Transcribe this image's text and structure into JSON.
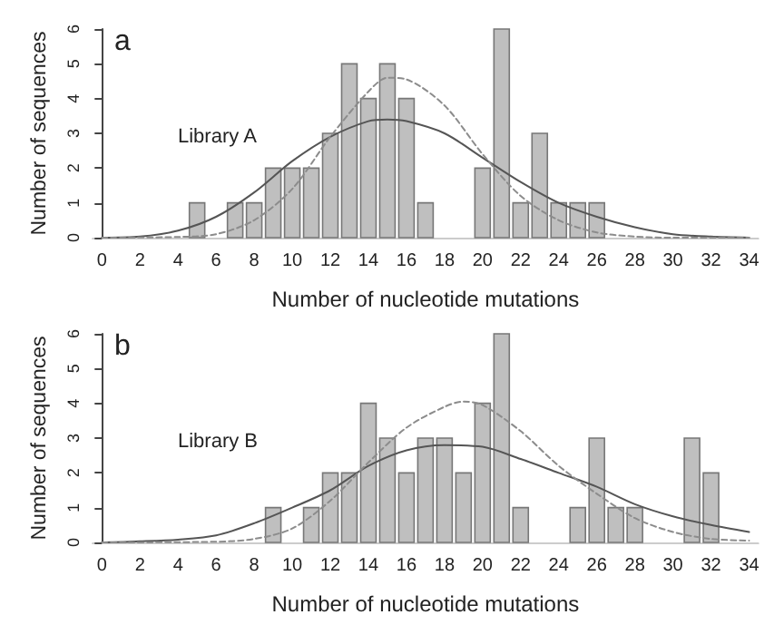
{
  "chart_data": [
    {
      "type": "histogram",
      "title": "a",
      "annotations": [
        "Library A"
      ],
      "xlabel": "Number of nucleotide mutations",
      "ylabel": "Number of sequences",
      "bins": [
        -0.5,
        0.5,
        1.5,
        2.5,
        3.5,
        4.5,
        5.5,
        6.5,
        7.5,
        8.5,
        9.5,
        10.5,
        11.5,
        12.5,
        13.5,
        14.5,
        15.5,
        16.5,
        17.5,
        18.5,
        19.5,
        20.5,
        21.5,
        22.5,
        23.5,
        24.5,
        25.5,
        26.5,
        27.5,
        28.5,
        29.5,
        30.5,
        31.5,
        32.5,
        33.5,
        34.5
      ],
      "values": [
        0,
        0,
        0,
        0,
        0,
        1,
        0,
        1,
        1,
        2,
        2,
        2,
        3,
        5,
        4,
        5,
        4,
        1,
        0,
        0,
        2,
        6,
        1,
        3,
        1,
        1,
        1,
        0,
        0,
        0,
        0,
        0,
        0,
        0,
        0
      ],
      "color": "#bfbfbf",
      "series": [
        {
          "type": "line",
          "line_style": "solid",
          "color": "#555555",
          "x": [
            0,
            2,
            4,
            6,
            8,
            10,
            12,
            14,
            15,
            16,
            18,
            20,
            22,
            24,
            26,
            28,
            30,
            32,
            34
          ],
          "values": [
            0,
            0.03,
            0.2,
            0.6,
            1.3,
            2.2,
            2.9,
            3.35,
            3.4,
            3.35,
            3.0,
            2.3,
            1.6,
            1.0,
            0.6,
            0.3,
            0.1,
            0.03,
            0
          ]
        },
        {
          "type": "line",
          "line_style": "dashed",
          "color": "#8c8c8c",
          "x": [
            0,
            4,
            6,
            8,
            10,
            12,
            14,
            15,
            16,
            18,
            20,
            22,
            24,
            26,
            28,
            30,
            34
          ],
          "values": [
            0,
            0.02,
            0.1,
            0.5,
            1.4,
            2.9,
            4.2,
            4.6,
            4.55,
            3.8,
            2.4,
            1.2,
            0.5,
            0.15,
            0.03,
            0,
            0
          ]
        }
      ],
      "xlim": [
        -0.5,
        34.5
      ],
      "xticks": [
        0,
        2,
        4,
        6,
        8,
        10,
        12,
        14,
        16,
        18,
        20,
        22,
        24,
        26,
        28,
        30,
        32,
        34
      ],
      "ylim": [
        0,
        6
      ],
      "yticks": [
        0,
        1,
        2,
        3,
        4,
        5,
        6
      ]
    },
    {
      "type": "histogram",
      "title": "b",
      "annotations": [
        "Library B"
      ],
      "xlabel": "Number of nucleotide mutations",
      "ylabel": "Number of sequences",
      "bins": [
        -0.5,
        0.5,
        1.5,
        2.5,
        3.5,
        4.5,
        5.5,
        6.5,
        7.5,
        8.5,
        9.5,
        10.5,
        11.5,
        12.5,
        13.5,
        14.5,
        15.5,
        16.5,
        17.5,
        18.5,
        19.5,
        20.5,
        21.5,
        22.5,
        23.5,
        24.5,
        25.5,
        26.5,
        27.5,
        28.5,
        29.5,
        30.5,
        31.5,
        32.5,
        33.5,
        34.5
      ],
      "values": [
        0,
        0,
        0,
        0,
        0,
        0,
        0,
        0,
        0,
        1,
        0,
        1,
        2,
        2,
        4,
        3,
        2,
        3,
        3,
        2,
        4,
        6,
        1,
        0,
        0,
        1,
        3,
        1,
        1,
        0,
        0,
        3,
        2,
        0,
        0
      ],
      "color": "#bfbfbf",
      "series": [
        {
          "type": "line",
          "line_style": "solid",
          "color": "#555555",
          "x": [
            0,
            2,
            4,
            6,
            8,
            10,
            12,
            14,
            16,
            18,
            20,
            22,
            24,
            26,
            28,
            30,
            32,
            34
          ],
          "values": [
            0,
            0.03,
            0.08,
            0.2,
            0.55,
            1.0,
            1.5,
            2.2,
            2.65,
            2.8,
            2.75,
            2.4,
            2.0,
            1.6,
            1.1,
            0.75,
            0.5,
            0.3
          ]
        },
        {
          "type": "line",
          "line_style": "dashed",
          "color": "#8c8c8c",
          "x": [
            0,
            6,
            8,
            10,
            12,
            14,
            16,
            18,
            19,
            20,
            22,
            24,
            26,
            28,
            30,
            32,
            34
          ],
          "values": [
            0,
            0.02,
            0.1,
            0.4,
            1.2,
            2.3,
            3.3,
            3.9,
            4.05,
            3.95,
            3.2,
            2.2,
            1.4,
            0.7,
            0.3,
            0.1,
            0.05
          ]
        }
      ],
      "xlim": [
        -0.5,
        34.5
      ],
      "xticks": [
        0,
        2,
        4,
        6,
        8,
        10,
        12,
        14,
        16,
        18,
        20,
        22,
        24,
        26,
        28,
        30,
        32,
        34
      ],
      "ylim": [
        0,
        6
      ],
      "yticks": [
        0,
        1,
        2,
        3,
        4,
        5,
        6
      ]
    }
  ]
}
